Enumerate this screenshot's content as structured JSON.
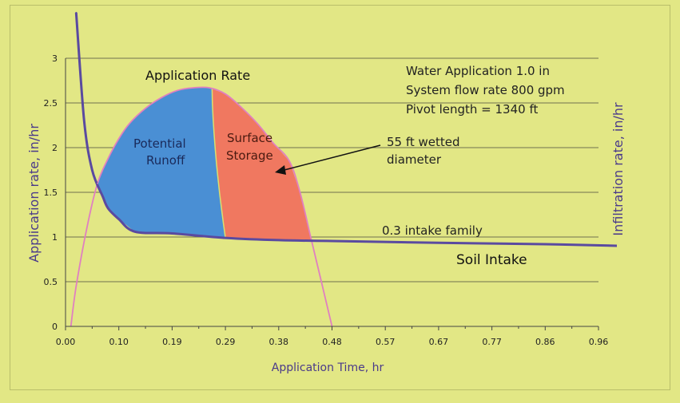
{
  "chart_data": {
    "type": "line",
    "title": "",
    "xlabel": "Application Time, hr",
    "ylabel": "Application rate, in/hr",
    "ylabel_right": "Infiltration rate, in/hr",
    "xlim": [
      0,
      1.0
    ],
    "ylim": [
      0,
      3
    ],
    "x_ticks": [
      "0.00",
      "0.10",
      "0.19",
      "0.29",
      "0.38",
      "0.48",
      "0.57",
      "0.67",
      "0.77",
      "0.86",
      "0.96"
    ],
    "y_ticks": [
      "0",
      "0.5",
      "1",
      "1.5",
      "2",
      "2.5",
      "3"
    ],
    "grid": true,
    "colors": {
      "background": "#e2e785",
      "application_rate_line": "#e080c0",
      "soil_intake_line": "#5a4aa0",
      "potential_runoff_fill": "#4a8fd4",
      "surface_storage_fill": "#f07860",
      "grid": "#707050"
    },
    "series": [
      {
        "name": "Application Rate",
        "x": [
          0.01,
          0.02,
          0.04,
          0.06,
          0.08,
          0.1,
          0.12,
          0.15,
          0.18,
          0.21,
          0.24,
          0.27,
          0.3,
          0.33,
          0.36,
          0.39,
          0.42,
          0.44,
          0.46,
          0.48,
          0.5
        ],
        "y": [
          0,
          0.45,
          1.1,
          1.6,
          1.88,
          2.1,
          2.27,
          2.44,
          2.56,
          2.64,
          2.67,
          2.67,
          2.6,
          2.45,
          2.27,
          2.05,
          1.85,
          1.5,
          1.0,
          0.5,
          0
        ]
      },
      {
        "name": "Soil Intake",
        "x": [
          0.02,
          0.035,
          0.05,
          0.07,
          0.08,
          0.1,
          0.13,
          0.2,
          0.3,
          0.4,
          0.5,
          0.7,
          0.9,
          1.05
        ],
        "y": [
          3.51,
          2.3,
          1.75,
          1.45,
          1.32,
          1.2,
          1.06,
          1.04,
          0.99,
          0.965,
          0.955,
          0.935,
          0.92,
          0.9
        ]
      }
    ],
    "regions": [
      {
        "name": "Potential Runoff",
        "label_lines": [
          "Potential",
          "Runoff"
        ]
      },
      {
        "name": "Surface Storage",
        "label_lines": [
          "Surface",
          "Storage"
        ]
      }
    ],
    "annotations": {
      "application_rate_label": "Application Rate",
      "info_lines": [
        "Water Application 1.0 in",
        "System flow rate 800 gpm",
        "Pivot length = 1340 ft"
      ],
      "wetted_lines": [
        "55 ft wetted",
        "diameter"
      ],
      "intake_family": "0.3 intake family",
      "soil_intake_label": "Soil Intake"
    }
  }
}
